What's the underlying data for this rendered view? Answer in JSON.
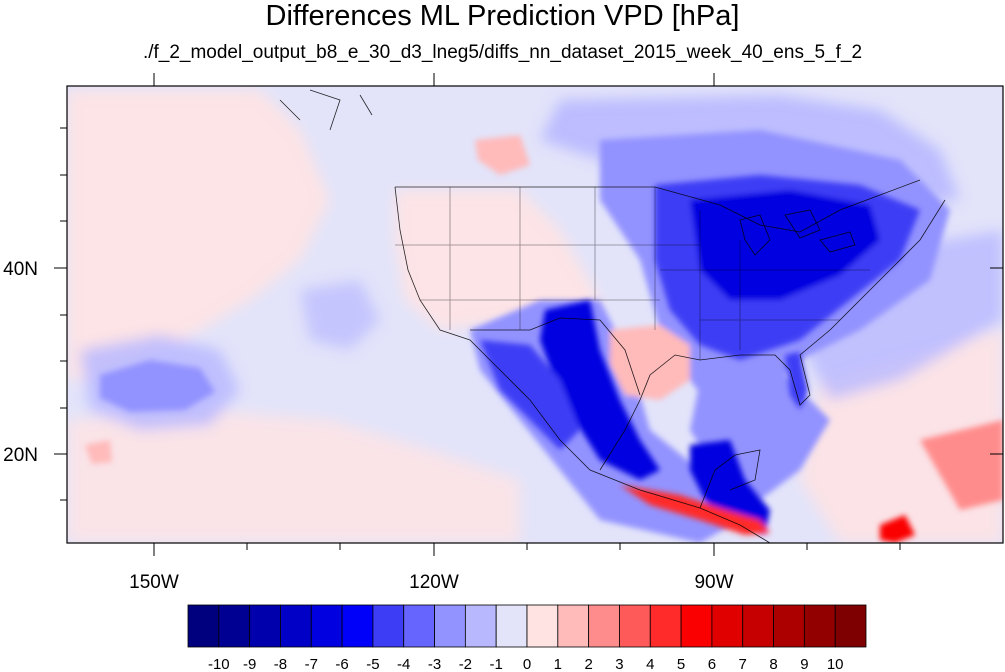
{
  "title": "Differences ML Prediction VPD [hPa]",
  "subtitle": "./f_2_model_output_b8_e_30_d3_lneg5/diffs_nn_dataset_2015_week_40_ens_5_f_2",
  "map": {
    "projection": "cylindrical-equidistant",
    "lon_range": [
      -160,
      -62
    ],
    "lat_range": [
      10,
      58
    ],
    "lon_ticks": [
      "150W",
      "120W",
      "90W"
    ],
    "lat_ticks": [
      "40N",
      "20N"
    ],
    "background_value": -1,
    "features": [
      {
        "name": "eastern-us-and-great-lakes",
        "value": -7
      },
      {
        "name": "mexican-highlands",
        "value": -6
      },
      {
        "name": "central-america-and-guatemala",
        "value": -7
      },
      {
        "name": "florida-peninsula",
        "value": -4
      },
      {
        "name": "texas-and-gulf-coast",
        "value": 4
      },
      {
        "name": "pacific-coast-of-mexico-and-central-america",
        "value": 6
      },
      {
        "name": "caribbean-south-east",
        "value": 6
      },
      {
        "name": "north-pacific-blue-area",
        "value": -4
      },
      {
        "name": "hawaii",
        "value": 3
      },
      {
        "name": "western-us-interior",
        "value": 1
      },
      {
        "name": "atlantic-northeast-blue",
        "value": -3
      }
    ]
  },
  "colorbar": {
    "labels": [
      "-10",
      "-9",
      "-8",
      "-7",
      "-6",
      "-5",
      "-4",
      "-3",
      "-2",
      "-1",
      "0",
      "1",
      "2",
      "3",
      "4",
      "5",
      "6",
      "7",
      "8",
      "9",
      "10"
    ],
    "colors": [
      "#00007f",
      "#000093",
      "#0000ac",
      "#0000c6",
      "#0000e0",
      "#0000fa",
      "#3d3df5",
      "#6666ff",
      "#9393ff",
      "#b8b8ff",
      "#e3e4fa",
      "#ffe3e3",
      "#ffbaba",
      "#ff8c8c",
      "#ff5a5a",
      "#ff2a2a",
      "#fa0000",
      "#e00000",
      "#c60000",
      "#ac0000",
      "#930000",
      "#7f0000"
    ]
  }
}
